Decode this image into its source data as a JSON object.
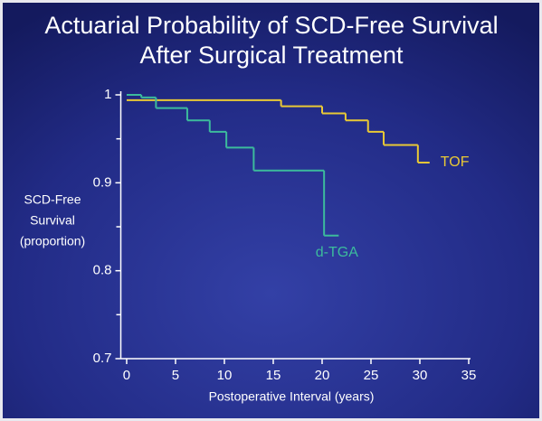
{
  "chart_data": {
    "type": "step",
    "title": [
      "Actuarial Probability of SCD-Free Survival",
      "After Surgical Treatment"
    ],
    "x_label": "Postoperative Interval (years)",
    "y_label": [
      "SCD-Free",
      "Survival",
      "(proportion)"
    ],
    "series": [
      {
        "name": "TOF",
        "color": "#e9c935",
        "x": [
          0,
          15.8,
          20,
          22.4,
          24.7,
          26.3,
          29.8,
          31
        ],
        "values": [
          0.994,
          0.987,
          0.979,
          0.971,
          0.958,
          0.943,
          0.923,
          0.923
        ]
      },
      {
        "name": "d-TGA",
        "color": "#3cbb9c",
        "x": [
          0,
          1.5,
          3,
          6.2,
          8.5,
          10.2,
          13,
          20.2,
          21.7
        ],
        "values": [
          1.0,
          0.997,
          0.985,
          0.971,
          0.958,
          0.94,
          0.914,
          0.84,
          0.84
        ]
      }
    ],
    "xlim": [
      -0.6,
      35
    ],
    "xticks": [
      0,
      5,
      10,
      15,
      20,
      25,
      30,
      35
    ],
    "ylim": [
      0.7,
      1
    ],
    "yticks": [
      {
        "value": 0.7,
        "label": "0.7"
      },
      {
        "value": 0.8,
        "label": "0.8"
      },
      {
        "value": 0.9,
        "label": "0.9"
      },
      1
    ],
    "yticks_minor": [
      0.75,
      0.85,
      0.95
    ]
  }
}
